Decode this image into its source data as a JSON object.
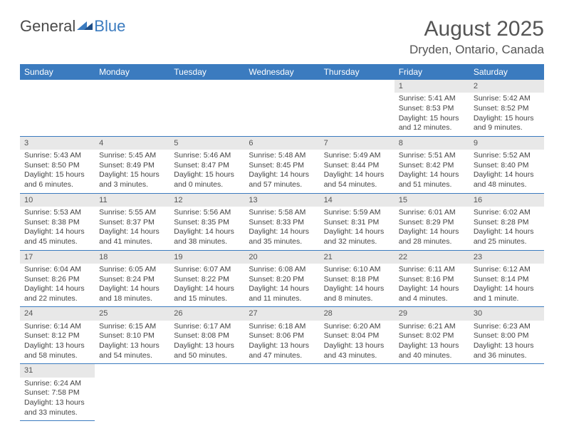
{
  "logo": {
    "text1": "General",
    "text2": "Blue"
  },
  "title": "August 2025",
  "location": "Dryden, Ontario, Canada",
  "colors": {
    "header_bg": "#3b7bbf",
    "header_text": "#ffffff",
    "daynum_bg": "#e8e8e8",
    "border": "#3b7bbf",
    "text": "#444444",
    "background": "#ffffff"
  },
  "weekdays": [
    "Sunday",
    "Monday",
    "Tuesday",
    "Wednesday",
    "Thursday",
    "Friday",
    "Saturday"
  ],
  "weeks": [
    [
      {
        "empty": true
      },
      {
        "empty": true
      },
      {
        "empty": true
      },
      {
        "empty": true
      },
      {
        "empty": true
      },
      {
        "day": "1",
        "sunrise": "Sunrise: 5:41 AM",
        "sunset": "Sunset: 8:53 PM",
        "daylight": "Daylight: 15 hours and 12 minutes."
      },
      {
        "day": "2",
        "sunrise": "Sunrise: 5:42 AM",
        "sunset": "Sunset: 8:52 PM",
        "daylight": "Daylight: 15 hours and 9 minutes."
      }
    ],
    [
      {
        "day": "3",
        "sunrise": "Sunrise: 5:43 AM",
        "sunset": "Sunset: 8:50 PM",
        "daylight": "Daylight: 15 hours and 6 minutes."
      },
      {
        "day": "4",
        "sunrise": "Sunrise: 5:45 AM",
        "sunset": "Sunset: 8:49 PM",
        "daylight": "Daylight: 15 hours and 3 minutes."
      },
      {
        "day": "5",
        "sunrise": "Sunrise: 5:46 AM",
        "sunset": "Sunset: 8:47 PM",
        "daylight": "Daylight: 15 hours and 0 minutes."
      },
      {
        "day": "6",
        "sunrise": "Sunrise: 5:48 AM",
        "sunset": "Sunset: 8:45 PM",
        "daylight": "Daylight: 14 hours and 57 minutes."
      },
      {
        "day": "7",
        "sunrise": "Sunrise: 5:49 AM",
        "sunset": "Sunset: 8:44 PM",
        "daylight": "Daylight: 14 hours and 54 minutes."
      },
      {
        "day": "8",
        "sunrise": "Sunrise: 5:51 AM",
        "sunset": "Sunset: 8:42 PM",
        "daylight": "Daylight: 14 hours and 51 minutes."
      },
      {
        "day": "9",
        "sunrise": "Sunrise: 5:52 AM",
        "sunset": "Sunset: 8:40 PM",
        "daylight": "Daylight: 14 hours and 48 minutes."
      }
    ],
    [
      {
        "day": "10",
        "sunrise": "Sunrise: 5:53 AM",
        "sunset": "Sunset: 8:38 PM",
        "daylight": "Daylight: 14 hours and 45 minutes."
      },
      {
        "day": "11",
        "sunrise": "Sunrise: 5:55 AM",
        "sunset": "Sunset: 8:37 PM",
        "daylight": "Daylight: 14 hours and 41 minutes."
      },
      {
        "day": "12",
        "sunrise": "Sunrise: 5:56 AM",
        "sunset": "Sunset: 8:35 PM",
        "daylight": "Daylight: 14 hours and 38 minutes."
      },
      {
        "day": "13",
        "sunrise": "Sunrise: 5:58 AM",
        "sunset": "Sunset: 8:33 PM",
        "daylight": "Daylight: 14 hours and 35 minutes."
      },
      {
        "day": "14",
        "sunrise": "Sunrise: 5:59 AM",
        "sunset": "Sunset: 8:31 PM",
        "daylight": "Daylight: 14 hours and 32 minutes."
      },
      {
        "day": "15",
        "sunrise": "Sunrise: 6:01 AM",
        "sunset": "Sunset: 8:29 PM",
        "daylight": "Daylight: 14 hours and 28 minutes."
      },
      {
        "day": "16",
        "sunrise": "Sunrise: 6:02 AM",
        "sunset": "Sunset: 8:28 PM",
        "daylight": "Daylight: 14 hours and 25 minutes."
      }
    ],
    [
      {
        "day": "17",
        "sunrise": "Sunrise: 6:04 AM",
        "sunset": "Sunset: 8:26 PM",
        "daylight": "Daylight: 14 hours and 22 minutes."
      },
      {
        "day": "18",
        "sunrise": "Sunrise: 6:05 AM",
        "sunset": "Sunset: 8:24 PM",
        "daylight": "Daylight: 14 hours and 18 minutes."
      },
      {
        "day": "19",
        "sunrise": "Sunrise: 6:07 AM",
        "sunset": "Sunset: 8:22 PM",
        "daylight": "Daylight: 14 hours and 15 minutes."
      },
      {
        "day": "20",
        "sunrise": "Sunrise: 6:08 AM",
        "sunset": "Sunset: 8:20 PM",
        "daylight": "Daylight: 14 hours and 11 minutes."
      },
      {
        "day": "21",
        "sunrise": "Sunrise: 6:10 AM",
        "sunset": "Sunset: 8:18 PM",
        "daylight": "Daylight: 14 hours and 8 minutes."
      },
      {
        "day": "22",
        "sunrise": "Sunrise: 6:11 AM",
        "sunset": "Sunset: 8:16 PM",
        "daylight": "Daylight: 14 hours and 4 minutes."
      },
      {
        "day": "23",
        "sunrise": "Sunrise: 6:12 AM",
        "sunset": "Sunset: 8:14 PM",
        "daylight": "Daylight: 14 hours and 1 minute."
      }
    ],
    [
      {
        "day": "24",
        "sunrise": "Sunrise: 6:14 AM",
        "sunset": "Sunset: 8:12 PM",
        "daylight": "Daylight: 13 hours and 58 minutes."
      },
      {
        "day": "25",
        "sunrise": "Sunrise: 6:15 AM",
        "sunset": "Sunset: 8:10 PM",
        "daylight": "Daylight: 13 hours and 54 minutes."
      },
      {
        "day": "26",
        "sunrise": "Sunrise: 6:17 AM",
        "sunset": "Sunset: 8:08 PM",
        "daylight": "Daylight: 13 hours and 50 minutes."
      },
      {
        "day": "27",
        "sunrise": "Sunrise: 6:18 AM",
        "sunset": "Sunset: 8:06 PM",
        "daylight": "Daylight: 13 hours and 47 minutes."
      },
      {
        "day": "28",
        "sunrise": "Sunrise: 6:20 AM",
        "sunset": "Sunset: 8:04 PM",
        "daylight": "Daylight: 13 hours and 43 minutes."
      },
      {
        "day": "29",
        "sunrise": "Sunrise: 6:21 AM",
        "sunset": "Sunset: 8:02 PM",
        "daylight": "Daylight: 13 hours and 40 minutes."
      },
      {
        "day": "30",
        "sunrise": "Sunrise: 6:23 AM",
        "sunset": "Sunset: 8:00 PM",
        "daylight": "Daylight: 13 hours and 36 minutes."
      }
    ],
    [
      {
        "day": "31",
        "sunrise": "Sunrise: 6:24 AM",
        "sunset": "Sunset: 7:58 PM",
        "daylight": "Daylight: 13 hours and 33 minutes."
      },
      {
        "empty": true
      },
      {
        "empty": true
      },
      {
        "empty": true
      },
      {
        "empty": true
      },
      {
        "empty": true
      },
      {
        "empty": true
      }
    ]
  ]
}
